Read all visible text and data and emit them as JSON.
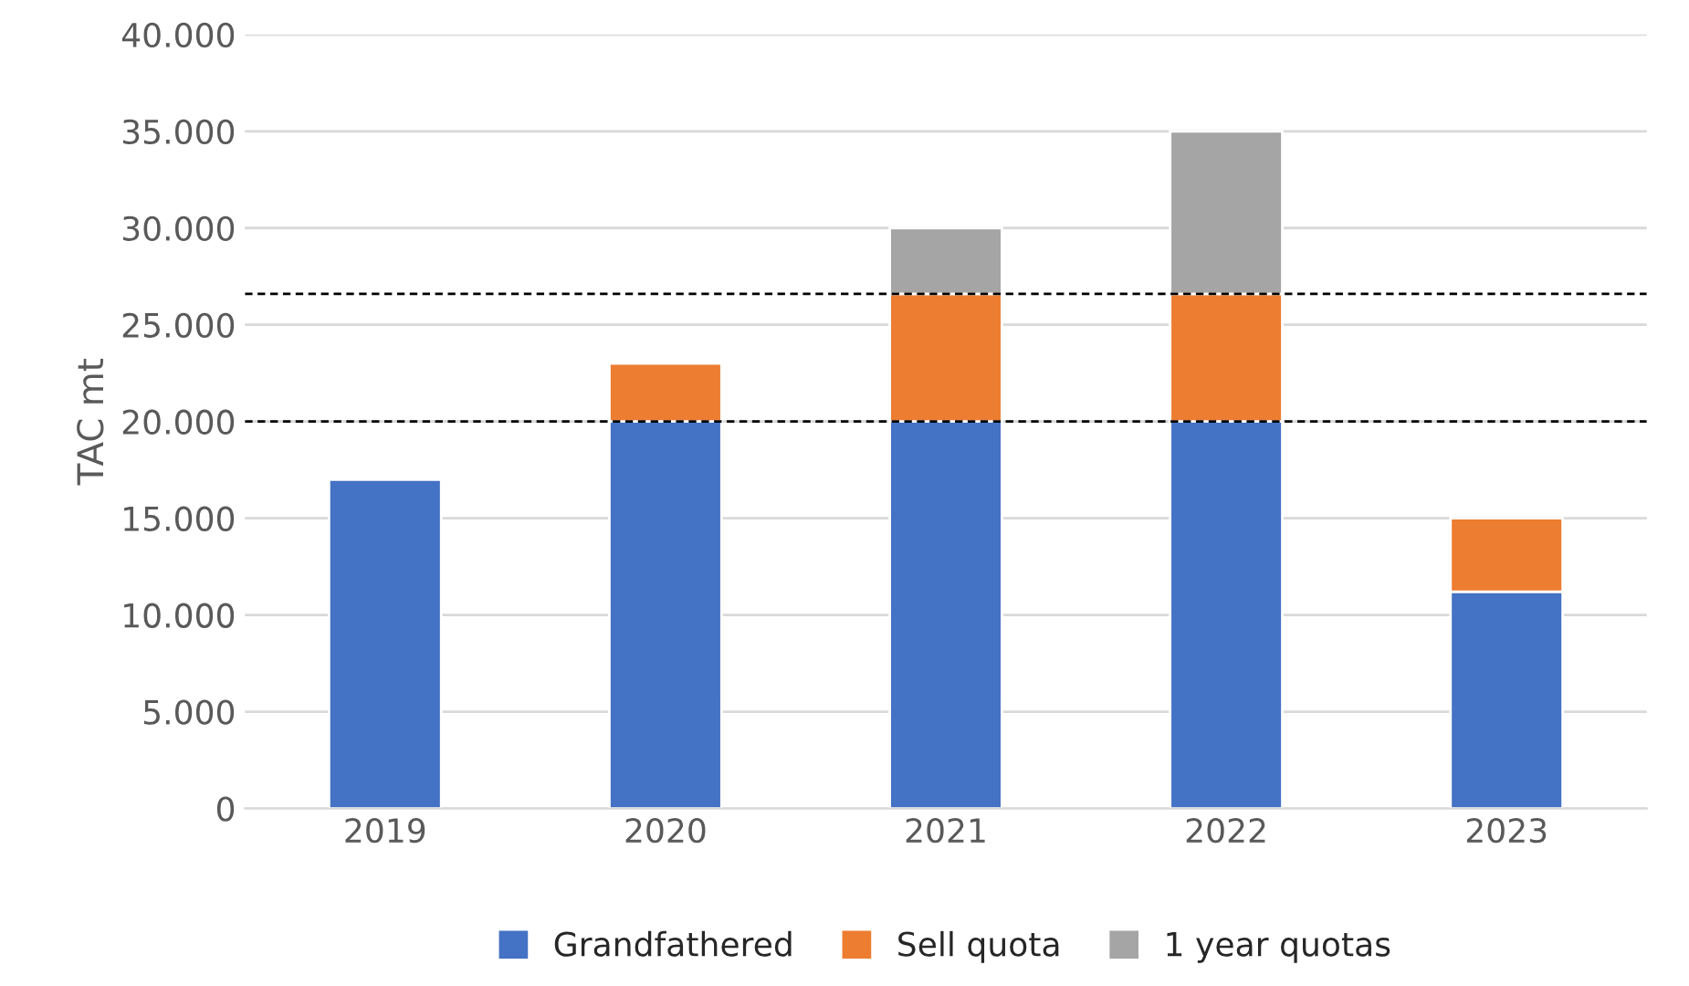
{
  "chart_data": {
    "type": "bar",
    "stacked": true,
    "ylabel": "TAC mt",
    "categories": [
      "2019",
      "2020",
      "2021",
      "2022",
      "2023"
    ],
    "series": [
      {
        "name": "Grandfathered",
        "color": "#4472c4",
        "values": [
          17000,
          20000,
          20000,
          20000,
          11200
        ]
      },
      {
        "name": "Sell quota",
        "color": "#ed7d31",
        "values": [
          null,
          3000,
          6600,
          6600,
          3800
        ]
      },
      {
        "name": "1 year quotas",
        "color": "#a5a5a5",
        "values": [
          null,
          null,
          3400,
          8400,
          null
        ]
      }
    ],
    "ylim": [
      0,
      40000
    ],
    "yticks": [
      {
        "value": 0,
        "label": "0"
      },
      {
        "value": 5000,
        "label": "5.000"
      },
      {
        "value": 10000,
        "label": "10.000"
      },
      {
        "value": 15000,
        "label": "15.000"
      },
      {
        "value": 20000,
        "label": "20.000"
      },
      {
        "value": 25000,
        "label": "25.000"
      },
      {
        "value": 30000,
        "label": "30.000"
      },
      {
        "value": 35000,
        "label": "35.000"
      },
      {
        "value": 40000,
        "label": "40.000"
      }
    ],
    "ref_lines": [
      {
        "axis": "y",
        "value": 20000,
        "color": "#000000",
        "line_style": "dashed"
      },
      {
        "axis": "y",
        "value": 26600,
        "color": "#000000",
        "line_style": "dashed"
      }
    ],
    "grid": "y",
    "legend": "bottom"
  }
}
